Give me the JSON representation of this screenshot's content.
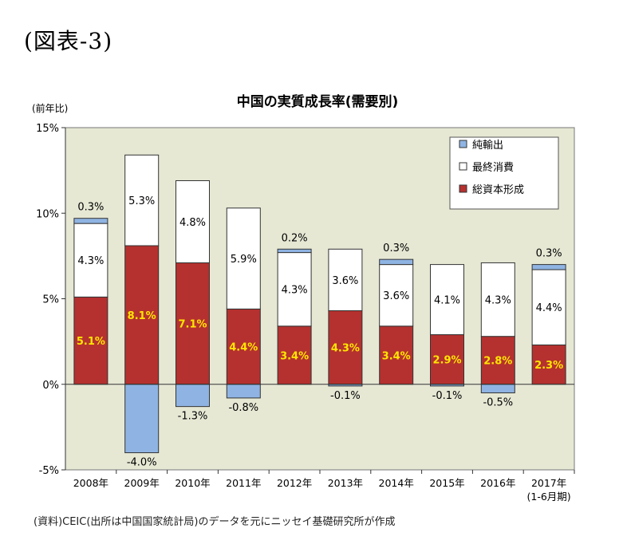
{
  "figure_label": "(図表-3)",
  "source": "(資料)CEIC(出所は中国国家統計局)のデータを元にニッセイ基礎研究所が作成",
  "chart_data": {
    "type": "bar",
    "stacked": true,
    "title": "中国の実質成長率(需要別)",
    "ylabel": "(前年比)",
    "ylim": [
      -5,
      15
    ],
    "yticks": [
      {
        "value": 15,
        "label": "15%"
      },
      {
        "value": 10,
        "label": "10%"
      },
      {
        "value": 5,
        "label": "5%"
      },
      {
        "value": 0,
        "label": "0%"
      },
      {
        "value": -5,
        "label": "-5%"
      }
    ],
    "categories": [
      "2008年",
      "2009年",
      "2010年",
      "2011年",
      "2012年",
      "2013年",
      "2014年",
      "2015年",
      "2016年",
      "2017年"
    ],
    "category_sublabels": [
      "",
      "",
      "",
      "",
      "",
      "",
      "",
      "",
      "",
      "(1-6月期)"
    ],
    "grid": false,
    "legend_position": "top-right",
    "plot_background": "#e6e8d4",
    "series": [
      {
        "key": "capital",
        "name": "総資本形成",
        "color": "#b5312f",
        "label_color": "#ffe600",
        "values": [
          5.1,
          8.1,
          7.1,
          4.4,
          3.4,
          4.3,
          3.4,
          2.9,
          2.8,
          2.3
        ],
        "labels": [
          "5.1%",
          "8.1%",
          "7.1%",
          "4.4%",
          "3.4%",
          "4.3%",
          "3.4%",
          "2.9%",
          "2.8%",
          "2.3%"
        ]
      },
      {
        "key": "consumption",
        "name": "最終消費",
        "color": "#ffffff",
        "label_color": "#000000",
        "values": [
          4.3,
          5.3,
          4.8,
          5.9,
          4.3,
          3.6,
          3.6,
          4.1,
          4.3,
          4.4
        ],
        "labels": [
          "4.3%",
          "5.3%",
          "4.8%",
          "5.9%",
          "4.3%",
          "3.6%",
          "3.6%",
          "4.1%",
          "4.3%",
          "4.4%"
        ]
      },
      {
        "key": "net_exports",
        "name": "純輸出",
        "color": "#8fb4e3",
        "label_color": "#000000",
        "values": [
          0.3,
          -4.0,
          -1.3,
          -0.8,
          0.2,
          -0.1,
          0.3,
          -0.1,
          -0.5,
          0.3
        ],
        "labels": [
          "0.3%",
          "-4.0%",
          "-1.3%",
          "-0.8%",
          "0.2%",
          "-0.1%",
          "0.3%",
          "-0.1%",
          "-0.5%",
          "0.3%"
        ]
      }
    ],
    "legend_order": [
      "net_exports",
      "consumption",
      "capital"
    ]
  }
}
